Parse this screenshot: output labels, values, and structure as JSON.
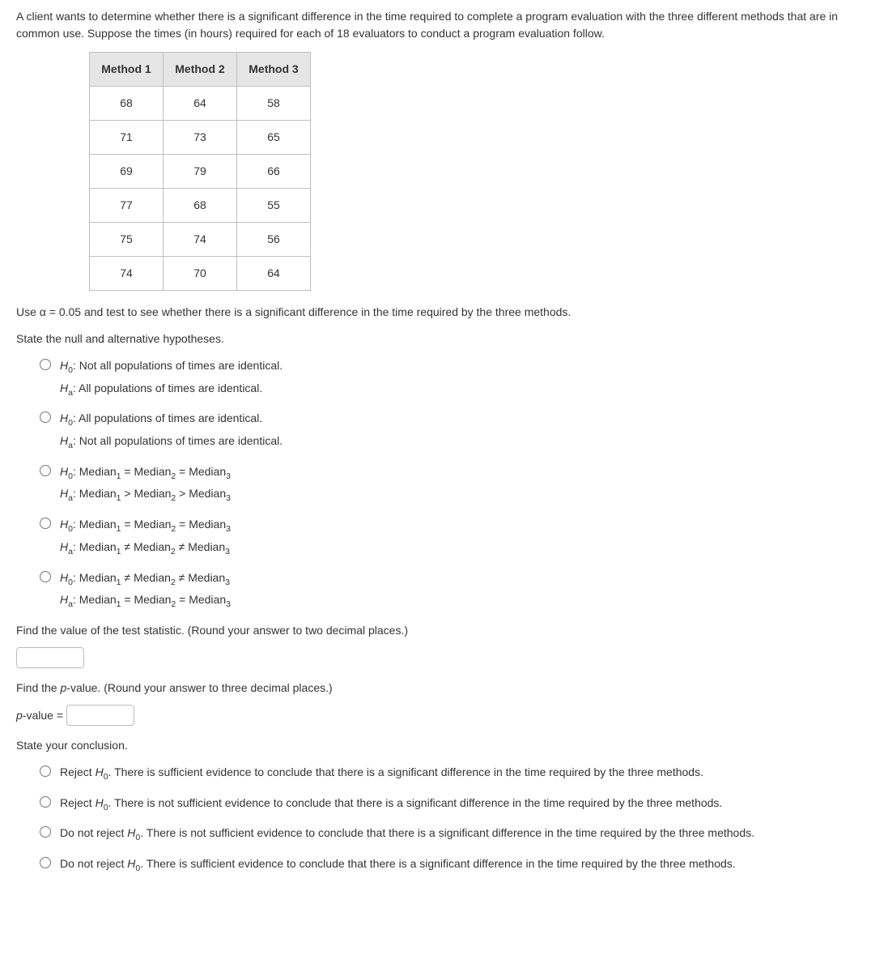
{
  "problem_text": "A client wants to determine whether there is a significant difference in the time required to complete a program evaluation with the three different methods that are in common use. Suppose the times (in hours) required for each of 18 evaluators to conduct a program evaluation follow.",
  "table": {
    "headers": [
      "Method 1",
      "Method 2",
      "Method 3"
    ],
    "rows": [
      [
        "68",
        "64",
        "58"
      ],
      [
        "71",
        "73",
        "65"
      ],
      [
        "69",
        "79",
        "66"
      ],
      [
        "77",
        "68",
        "55"
      ],
      [
        "75",
        "74",
        "56"
      ],
      [
        "74",
        "70",
        "64"
      ]
    ]
  },
  "alpha_line": "Use α = 0.05 and test to see whether there is a significant difference in the time required by the three methods.",
  "hyp_prompt": "State the null and alternative hypotheses.",
  "hyp_options": {
    "a": {
      "h0": "Not all populations of times are identical.",
      "ha": "All populations of times are identical."
    },
    "b": {
      "h0": "All populations of times are identical.",
      "ha": "Not all populations of times are identical."
    }
  },
  "test_stat_prompt": "Find the value of the test statistic. (Round your answer to two decimal places.)",
  "pvalue_prompt": "Find the p-value. (Round your answer to three decimal places.)",
  "pvalue_label": "p-value =",
  "conclusion_prompt": "State your conclusion.",
  "conclusions": {
    "a": "Reject H₀. There is sufficient evidence to conclude that there is a significant difference in the time required by the three methods.",
    "b": "Reject H₀. There is not sufficient evidence to conclude that there is a significant difference in the time required by the three methods.",
    "c": "Do not reject H₀. There is not sufficient evidence to conclude that there is a significant difference in the time required by the three methods.",
    "d": "Do not reject H₀. There is sufficient evidence to conclude that there is a significant difference in the time required by the three methods."
  }
}
